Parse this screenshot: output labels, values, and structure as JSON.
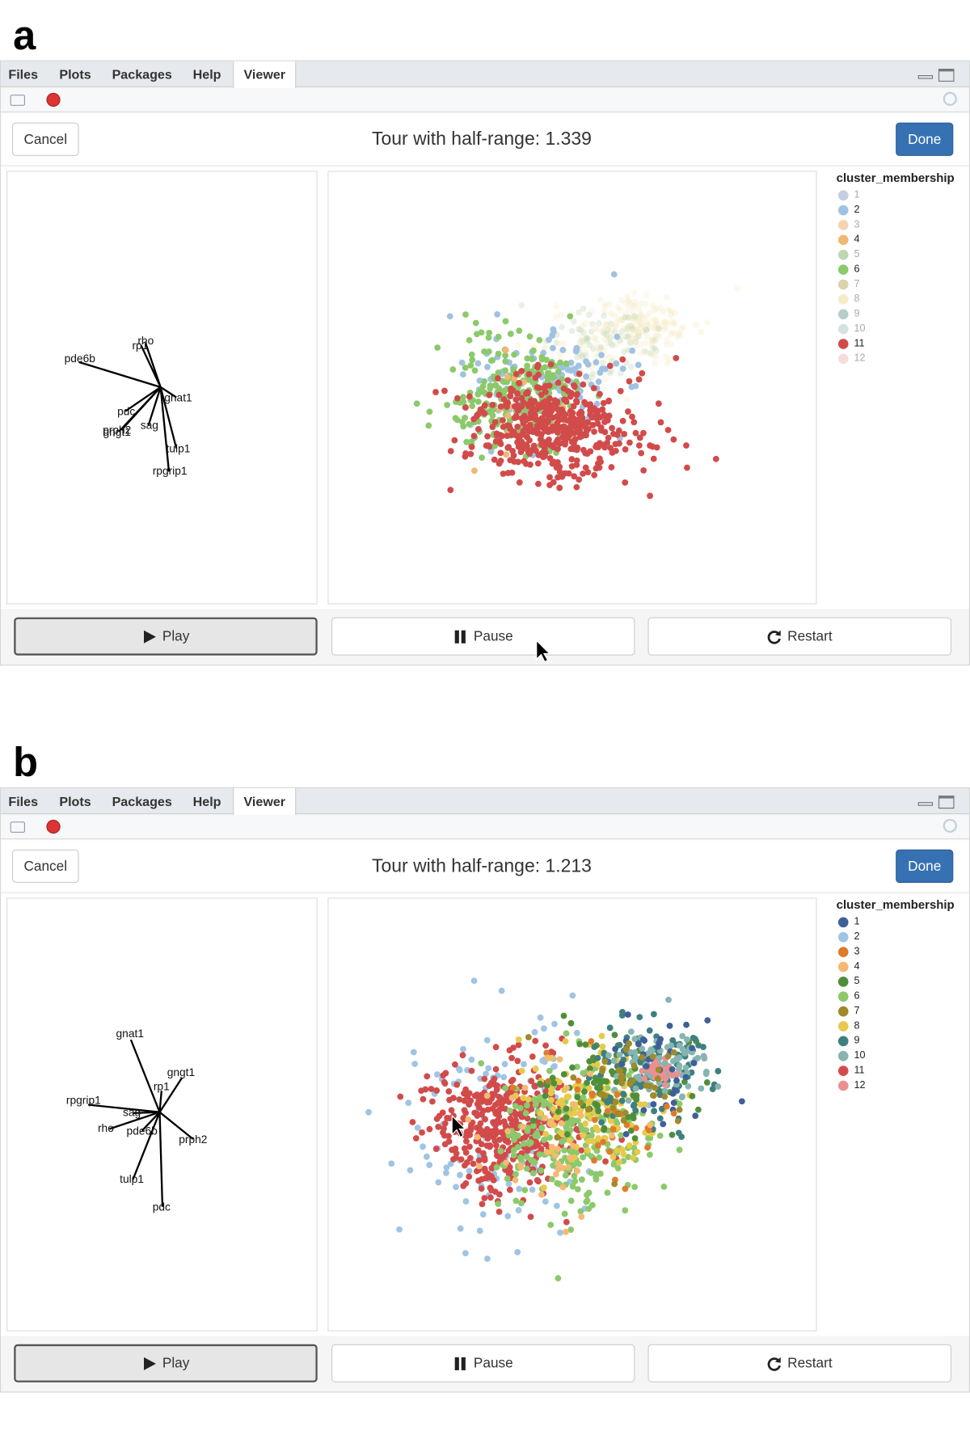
{
  "panels": [
    {
      "label": "a",
      "tabs": [
        "Files",
        "Plots",
        "Packages",
        "Help",
        "Viewer"
      ],
      "cancel": "Cancel",
      "title": "Tour with half-range: 1.339",
      "done": "Done",
      "axis_labels": [
        "rho",
        "rp1",
        "pde6b",
        "gnat1",
        "pdc",
        "sag",
        "gngt1",
        "prph2",
        "tulp1",
        "rpgrip1"
      ],
      "legend": {
        "title": "cluster_membership",
        "items": [
          {
            "label": "1",
            "color": "#c3cfe0"
          },
          {
            "label": "2",
            "color": "#9fc2e3"
          },
          {
            "label": "3",
            "color": "#f5d3b3"
          },
          {
            "label": "4",
            "color": "#f0b871"
          },
          {
            "label": "5",
            "color": "#bfd6b5"
          },
          {
            "label": "6",
            "color": "#8cc96b"
          },
          {
            "label": "7",
            "color": "#dcd3ae"
          },
          {
            "label": "8",
            "color": "#f6ecc6"
          },
          {
            "label": "9",
            "color": "#b8cccc"
          },
          {
            "label": "10",
            "color": "#d4e3e1"
          },
          {
            "label": "11",
            "color": "#d24b4b"
          },
          {
            "label": "12",
            "color": "#f6dcdc"
          }
        ]
      },
      "buttons": [
        "Play",
        "Pause",
        "Restart"
      ]
    },
    {
      "label": "b",
      "tabs": [
        "Files",
        "Plots",
        "Packages",
        "Help",
        "Viewer"
      ],
      "cancel": "Cancel",
      "title": "Tour with half-range: 1.213",
      "done": "Done",
      "axis_labels": [
        "gnat1",
        "gngt1",
        "rp1",
        "rpgrip1",
        "sag",
        "rho",
        "pde6b",
        "prph2",
        "tulp1",
        "pdc"
      ],
      "legend": {
        "title": "cluster_membership",
        "items": [
          {
            "label": "1",
            "color": "#3f5f99"
          },
          {
            "label": "2",
            "color": "#a0c4e4"
          },
          {
            "label": "3",
            "color": "#e07b2a"
          },
          {
            "label": "4",
            "color": "#f5b971"
          },
          {
            "label": "5",
            "color": "#4f8f3a"
          },
          {
            "label": "6",
            "color": "#8cc96b"
          },
          {
            "label": "7",
            "color": "#a08a2a"
          },
          {
            "label": "8",
            "color": "#e8c94a"
          },
          {
            "label": "9",
            "color": "#3f7f7f"
          },
          {
            "label": "10",
            "color": "#86b5b0"
          },
          {
            "label": "11",
            "color": "#d24b4b"
          },
          {
            "label": "12",
            "color": "#eb9090"
          }
        ]
      },
      "buttons": [
        "Play",
        "Pause",
        "Restart"
      ]
    }
  ]
}
